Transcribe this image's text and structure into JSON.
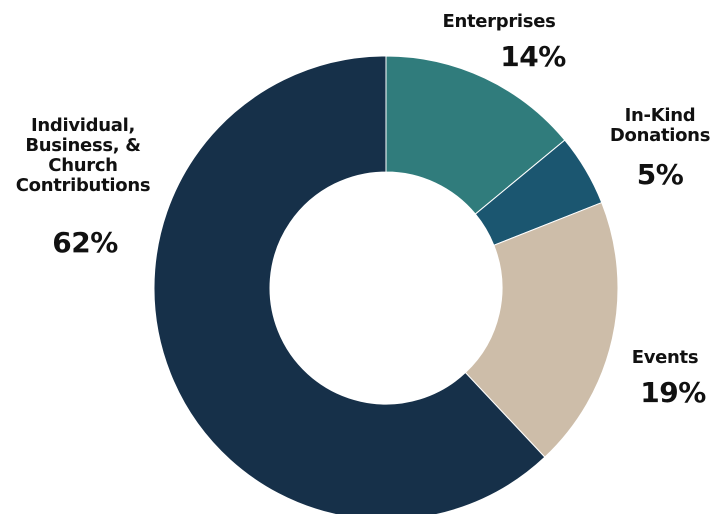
{
  "chart_data": {
    "type": "pie",
    "style": "donut",
    "slices": [
      {
        "label": "Individual,\nBusiness, &\nChurch\nContributions",
        "value": 62,
        "value_label": "62%",
        "color": "#163049"
      },
      {
        "label": "Enterprises",
        "value": 14,
        "value_label": "14%",
        "color": "#307c7c"
      },
      {
        "label": "In-Kind\nDonations",
        "value": 5,
        "value_label": "5%",
        "color": "#1b5670"
      },
      {
        "label": "Events",
        "value": 19,
        "value_label": "19%",
        "color": "#cdbda9"
      }
    ]
  }
}
